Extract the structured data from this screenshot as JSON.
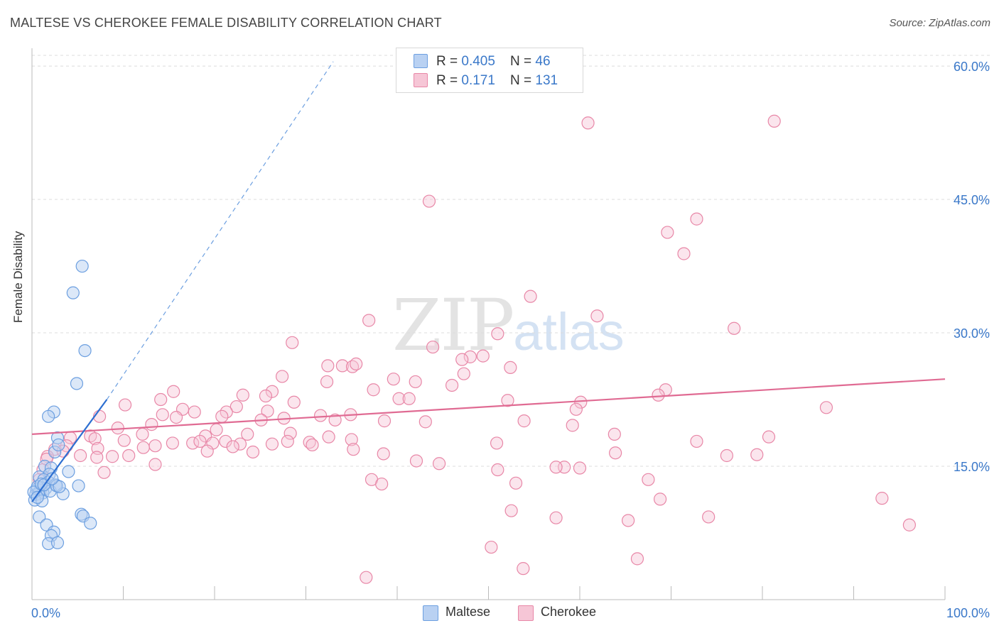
{
  "title": "MALTESE VS CHEROKEE FEMALE DISABILITY CORRELATION CHART",
  "source": "Source: ZipAtlas.com",
  "watermark": {
    "zip": "ZIP",
    "atlas": "atlas"
  },
  "colors": {
    "maltese": "#6c9fe0",
    "maltese_fill": "#b9d1f2",
    "maltese_line": "#2d6fd1",
    "cherokee": "#e887a7",
    "cherokee_fill": "#f6c6d6",
    "cherokee_line": "#e06b93",
    "tick_label": "#3a78c9"
  },
  "legend": {
    "maltese": {
      "r_label": "R = ",
      "r_value": "0.405",
      "n_label": "N = ",
      "n_value": "46"
    },
    "cherokee": {
      "r_label": "R = ",
      "r_value": "0.171",
      "n_label": "N = ",
      "n_value": "131"
    },
    "bottom": [
      "Maltese",
      "Cherokee"
    ]
  },
  "chart_data": {
    "type": "scatter",
    "title": "MALTESE VS CHEROKEE FEMALE DISABILITY CORRELATION CHART",
    "xlabel": "",
    "ylabel": "Female Disability",
    "xlim": [
      0,
      100
    ],
    "ylim": [
      0,
      62
    ],
    "x_ticks_labeled": [
      "0.0%",
      "100.0%"
    ],
    "y_ticks": [
      15,
      30,
      45,
      60
    ],
    "y_tick_labels": [
      "15.0%",
      "30.0%",
      "45.0%",
      "60.0%"
    ],
    "grid": "horizontal dashed",
    "legend_placement": "top-center and bottom-center",
    "series": [
      {
        "name": "Maltese",
        "R": 0.405,
        "N": 46,
        "trend": {
          "x": [
            0,
            8.2
          ],
          "y": [
            11.0,
            22.5
          ],
          "extended_x": [
            8.2,
            33
          ],
          "extended_y": [
            22.5,
            60.5
          ]
        },
        "points": [
          [
            5.5,
            37.5
          ],
          [
            4.5,
            34.5
          ],
          [
            5.8,
            28.0
          ],
          [
            4.9,
            24.3
          ],
          [
            2.4,
            21.1
          ],
          [
            1.8,
            20.6
          ],
          [
            2.8,
            18.2
          ],
          [
            2.5,
            16.6
          ],
          [
            2.9,
            17.4
          ],
          [
            1.4,
            15.0
          ],
          [
            2.1,
            14.8
          ],
          [
            1.9,
            14.1
          ],
          [
            4.0,
            14.4
          ],
          [
            0.8,
            13.8
          ],
          [
            1.3,
            13.5
          ],
          [
            1.8,
            13.2
          ],
          [
            2.6,
            12.9
          ],
          [
            1.0,
            12.6
          ],
          [
            1.5,
            12.5
          ],
          [
            0.5,
            12.4
          ],
          [
            0.9,
            12.3
          ],
          [
            1.2,
            12.0
          ],
          [
            0.4,
            11.8
          ],
          [
            0.7,
            11.9
          ],
          [
            2.0,
            12.2
          ],
          [
            3.4,
            11.9
          ],
          [
            0.3,
            11.2
          ],
          [
            1.1,
            11.1
          ],
          [
            0.6,
            12.7
          ],
          [
            2.7,
            12.8
          ],
          [
            5.1,
            12.8
          ],
          [
            0.8,
            9.3
          ],
          [
            5.4,
            9.6
          ],
          [
            5.6,
            9.4
          ],
          [
            6.4,
            8.6
          ],
          [
            1.6,
            8.4
          ],
          [
            2.4,
            7.6
          ],
          [
            2.1,
            7.2
          ],
          [
            1.8,
            6.3
          ],
          [
            2.8,
            6.4
          ],
          [
            0.2,
            12.1
          ],
          [
            1.0,
            13.0
          ],
          [
            3.0,
            12.7
          ],
          [
            1.3,
            12.9
          ],
          [
            0.6,
            11.5
          ],
          [
            2.2,
            13.6
          ]
        ]
      },
      {
        "name": "Cherokee",
        "R": 0.171,
        "N": 131,
        "trend": {
          "x": [
            0,
            100
          ],
          "y": [
            18.6,
            24.8
          ]
        },
        "points": [
          [
            60.9,
            53.6
          ],
          [
            81.3,
            53.8
          ],
          [
            43.5,
            44.8
          ],
          [
            72.8,
            42.8
          ],
          [
            69.6,
            41.3
          ],
          [
            71.4,
            38.9
          ],
          [
            54.6,
            34.1
          ],
          [
            61.9,
            31.9
          ],
          [
            36.9,
            31.4
          ],
          [
            76.9,
            30.5
          ],
          [
            51.0,
            29.9
          ],
          [
            28.5,
            28.9
          ],
          [
            43.9,
            28.4
          ],
          [
            48.0,
            27.3
          ],
          [
            49.4,
            27.4
          ],
          [
            47.1,
            27.0
          ],
          [
            32.4,
            26.3
          ],
          [
            34.0,
            26.3
          ],
          [
            35.1,
            26.2
          ],
          [
            35.5,
            26.5
          ],
          [
            52.4,
            26.1
          ],
          [
            47.3,
            25.4
          ],
          [
            27.4,
            25.1
          ],
          [
            39.6,
            24.8
          ],
          [
            42.0,
            24.5
          ],
          [
            32.3,
            24.5
          ],
          [
            46.0,
            24.1
          ],
          [
            37.4,
            23.6
          ],
          [
            15.5,
            23.4
          ],
          [
            23.1,
            23.0
          ],
          [
            26.3,
            23.4
          ],
          [
            25.6,
            22.9
          ],
          [
            14.1,
            22.5
          ],
          [
            40.2,
            22.6
          ],
          [
            41.3,
            22.6
          ],
          [
            69.4,
            23.6
          ],
          [
            68.6,
            23.0
          ],
          [
            52.1,
            22.4
          ],
          [
            60.1,
            22.2
          ],
          [
            28.7,
            22.2
          ],
          [
            22.4,
            21.7
          ],
          [
            10.2,
            21.9
          ],
          [
            16.5,
            21.4
          ],
          [
            17.8,
            21.1
          ],
          [
            21.3,
            21.1
          ],
          [
            25.8,
            21.2
          ],
          [
            14.3,
            20.8
          ],
          [
            59.6,
            21.4
          ],
          [
            87.0,
            21.6
          ],
          [
            20.8,
            20.6
          ],
          [
            31.6,
            20.7
          ],
          [
            27.6,
            20.4
          ],
          [
            25.1,
            20.2
          ],
          [
            33.2,
            20.2
          ],
          [
            34.9,
            20.8
          ],
          [
            43.1,
            20.0
          ],
          [
            53.9,
            20.1
          ],
          [
            38.6,
            20.1
          ],
          [
            7.4,
            20.6
          ],
          [
            9.4,
            19.3
          ],
          [
            15.8,
            20.5
          ],
          [
            20.2,
            19.1
          ],
          [
            59.2,
            19.6
          ],
          [
            6.4,
            18.4
          ],
          [
            12.1,
            18.6
          ],
          [
            19.0,
            18.4
          ],
          [
            23.6,
            18.6
          ],
          [
            28.3,
            18.7
          ],
          [
            32.5,
            18.3
          ],
          [
            63.8,
            18.6
          ],
          [
            80.7,
            18.3
          ],
          [
            6.9,
            18.1
          ],
          [
            10.1,
            17.9
          ],
          [
            15.4,
            17.6
          ],
          [
            17.6,
            17.6
          ],
          [
            18.4,
            17.8
          ],
          [
            19.8,
            17.6
          ],
          [
            21.2,
            17.8
          ],
          [
            22.8,
            17.5
          ],
          [
            26.3,
            17.5
          ],
          [
            28.0,
            17.8
          ],
          [
            30.4,
            17.7
          ],
          [
            35.0,
            18.0
          ],
          [
            50.9,
            17.6
          ],
          [
            72.8,
            17.8
          ],
          [
            7.2,
            17.0
          ],
          [
            12.2,
            17.1
          ],
          [
            13.5,
            17.3
          ],
          [
            22.0,
            17.2
          ],
          [
            30.7,
            17.4
          ],
          [
            4.2,
            18.2
          ],
          [
            3.8,
            17.3
          ],
          [
            2.5,
            16.9
          ],
          [
            3.4,
            16.7
          ],
          [
            1.7,
            16.1
          ],
          [
            5.3,
            16.2
          ],
          [
            7.1,
            16.0
          ],
          [
            8.8,
            16.1
          ],
          [
            10.6,
            16.2
          ],
          [
            24.2,
            16.6
          ],
          [
            35.2,
            16.9
          ],
          [
            38.5,
            16.4
          ],
          [
            63.9,
            16.5
          ],
          [
            76.1,
            16.2
          ],
          [
            79.4,
            16.3
          ],
          [
            42.1,
            15.6
          ],
          [
            44.6,
            15.3
          ],
          [
            13.5,
            15.2
          ],
          [
            58.3,
            14.9
          ],
          [
            51.0,
            14.6
          ],
          [
            57.4,
            14.9
          ],
          [
            60.0,
            14.8
          ],
          [
            7.9,
            14.3
          ],
          [
            1.2,
            14.6
          ],
          [
            1.6,
            15.8
          ],
          [
            0.8,
            13.5
          ],
          [
            19.2,
            16.7
          ],
          [
            37.2,
            13.5
          ],
          [
            38.3,
            13.0
          ],
          [
            53.0,
            13.1
          ],
          [
            67.5,
            13.5
          ],
          [
            68.8,
            11.3
          ],
          [
            93.1,
            11.4
          ],
          [
            52.5,
            10.0
          ],
          [
            57.4,
            9.2
          ],
          [
            65.3,
            8.9
          ],
          [
            74.1,
            9.3
          ],
          [
            96.1,
            8.4
          ],
          [
            50.3,
            5.9
          ],
          [
            53.8,
            3.5
          ],
          [
            66.3,
            4.6
          ],
          [
            36.6,
            2.5
          ],
          [
            13.1,
            19.7
          ]
        ]
      }
    ]
  }
}
